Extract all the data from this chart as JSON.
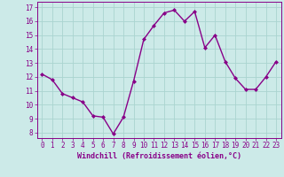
{
  "x": [
    0,
    1,
    2,
    3,
    4,
    5,
    6,
    7,
    8,
    9,
    10,
    11,
    12,
    13,
    14,
    15,
    16,
    17,
    18,
    19,
    20,
    21,
    22,
    23
  ],
  "y": [
    12.2,
    11.8,
    10.8,
    10.5,
    10.2,
    9.2,
    9.1,
    7.9,
    9.1,
    11.7,
    14.7,
    15.7,
    16.6,
    16.8,
    16.0,
    16.7,
    14.1,
    15.0,
    13.1,
    11.9,
    11.1,
    11.1,
    12.0,
    13.1
  ],
  "line_color": "#880088",
  "marker": "D",
  "marker_size": 2,
  "line_width": 1.0,
  "bg_color": "#cceae8",
  "grid_color": "#aad4d0",
  "xlabel": "Windchill (Refroidissement éolien,°C)",
  "xlabel_color": "#880088",
  "tick_color": "#880088",
  "ylim": [
    7.6,
    17.4
  ],
  "xlim": [
    -0.5,
    23.5
  ],
  "yticks": [
    8,
    9,
    10,
    11,
    12,
    13,
    14,
    15,
    16,
    17
  ],
  "xticks": [
    0,
    1,
    2,
    3,
    4,
    5,
    6,
    7,
    8,
    9,
    10,
    11,
    12,
    13,
    14,
    15,
    16,
    17,
    18,
    19,
    20,
    21,
    22,
    23
  ],
  "tick_fontsize": 5.5,
  "xlabel_fontsize": 6.0
}
